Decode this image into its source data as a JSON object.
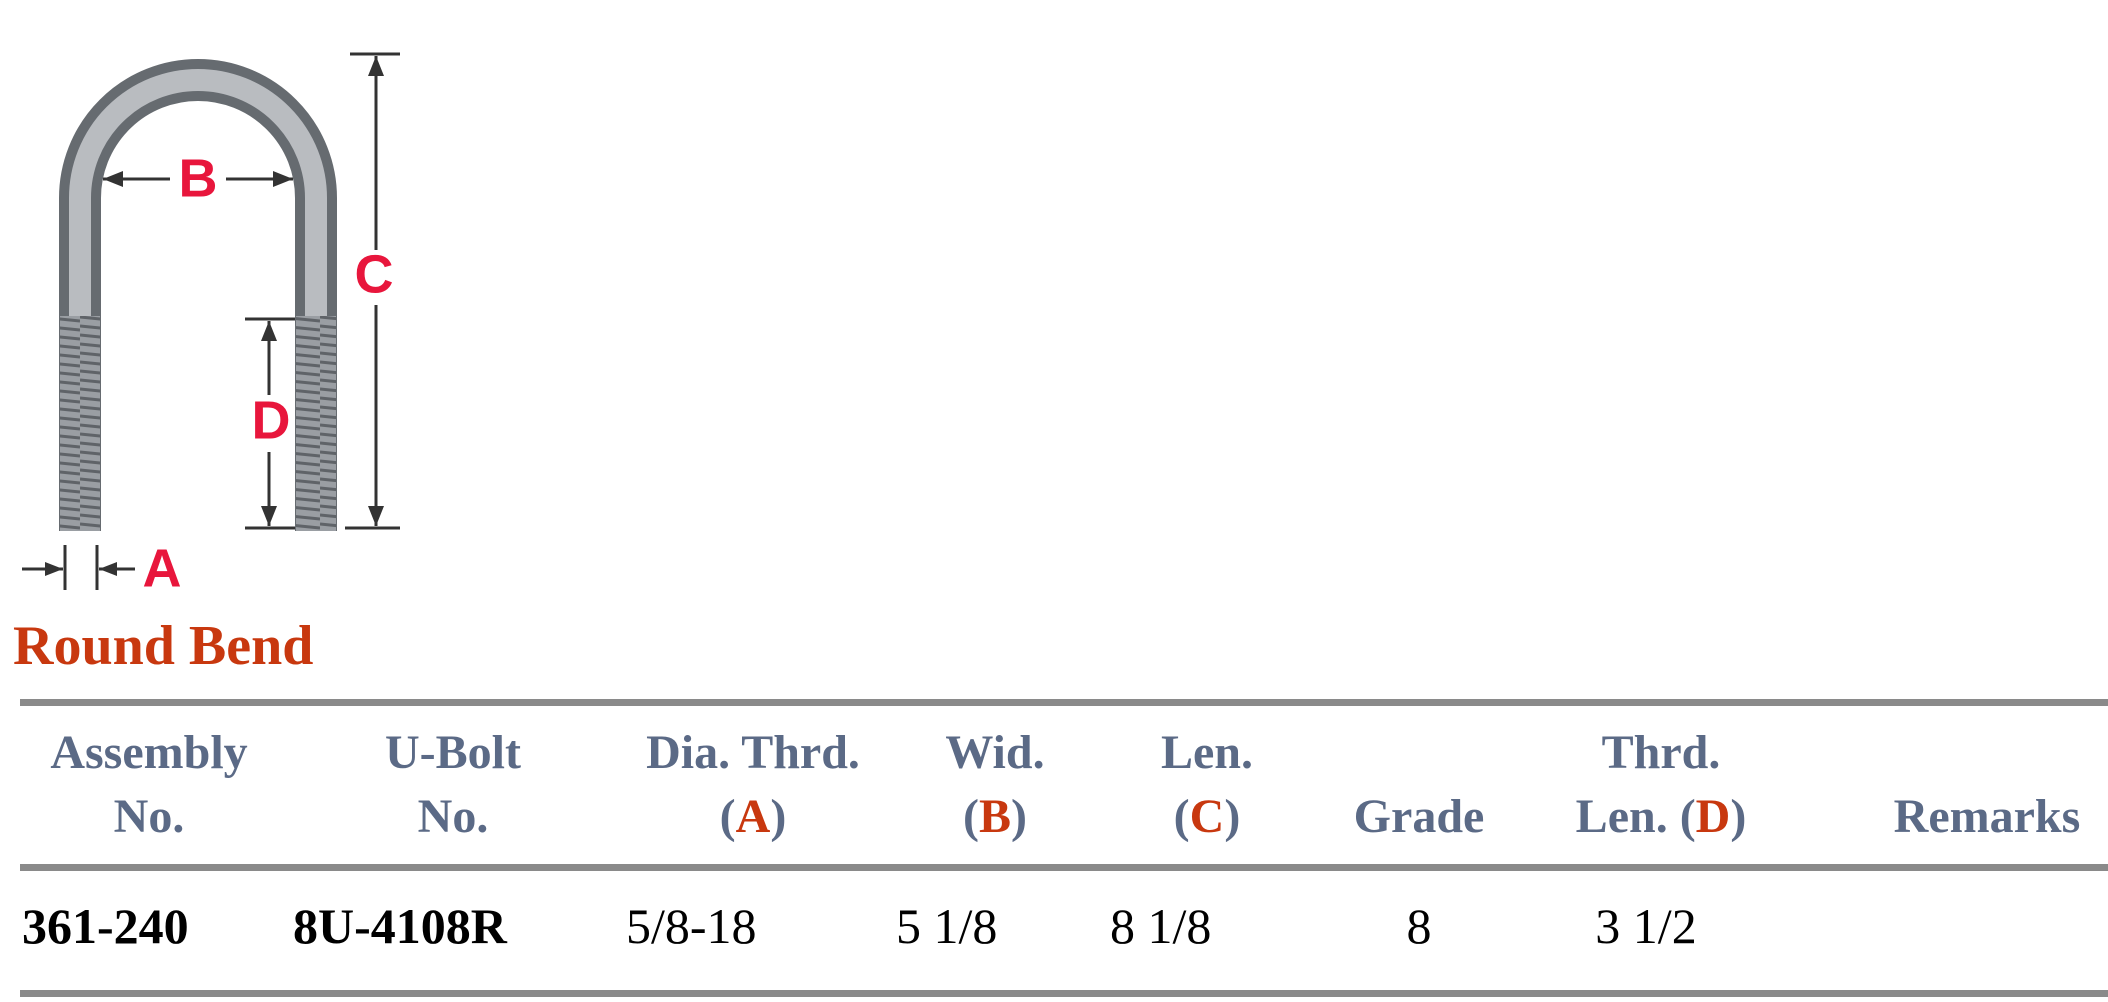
{
  "diagram": {
    "labels": {
      "b": "B",
      "c": "C",
      "d": "D",
      "a": "A"
    }
  },
  "title": "Round Bend",
  "table": {
    "headers": [
      {
        "lines": [
          "Assembly",
          "No."
        ]
      },
      {
        "lines": [
          "U-Bolt",
          "No."
        ]
      },
      {
        "lines": [
          "Dia. Thrd."
        ],
        "open": "(",
        "letter": "A",
        "close": ")"
      },
      {
        "lines": [
          "Wid."
        ],
        "open": "(",
        "letter": "B",
        "close": ")"
      },
      {
        "lines": [
          "Len."
        ],
        "open": "(",
        "letter": "C",
        "close": ")"
      },
      {
        "lines": [
          "Grade"
        ]
      },
      {
        "lines": [
          "Thrd."
        ],
        "open": "Len. (",
        "letter": "D",
        "close": ")"
      },
      {
        "lines": [
          "Remarks"
        ]
      }
    ],
    "rows": [
      [
        "361-240",
        "8U-4108R",
        "5/8-18",
        "5 1/8",
        "8 1/8",
        "8",
        "3 1/2"
      ]
    ]
  }
}
